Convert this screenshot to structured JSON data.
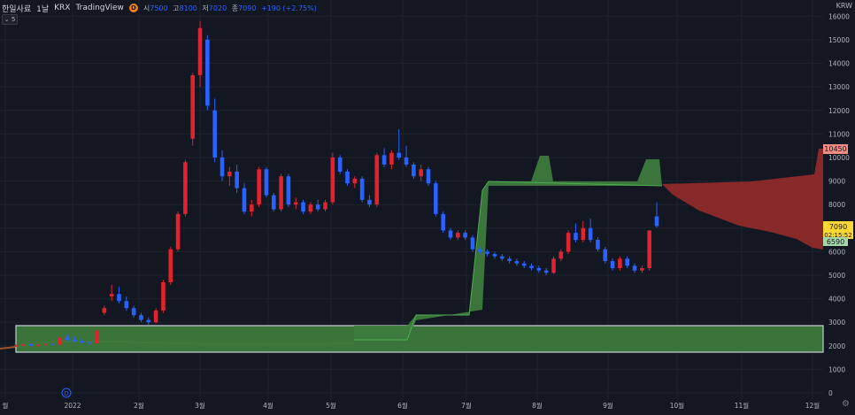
{
  "header": {
    "symbol": "한일사료",
    "interval": "1날",
    "exchange": "KRX",
    "source": "TradingView",
    "badge": "D",
    "open_label": "시",
    "open": "7500",
    "high_label": "고",
    "high": "8100",
    "low_label": "저",
    "low": "7020",
    "close_label": "종",
    "close": "7090",
    "change": "+190 (+2.75%)",
    "collapse_label": "5"
  },
  "currency": "KRW",
  "price_tags": {
    "cloud_top": "10450",
    "price": "7090",
    "countdown": "02:15:52",
    "cloud_bottom": "6590"
  },
  "event_marker": "D",
  "colors": {
    "background": "#131722",
    "up": "#e0232e",
    "down": "#2962ff",
    "cloud_bull": "#3d7a3d",
    "cloud_bear": "#8e2a2a",
    "grid": "#1e222d"
  },
  "chart_data": {
    "type": "candlestick",
    "ylim": [
      0,
      16000
    ],
    "y_ticks": [
      0,
      1000,
      2000,
      3000,
      4000,
      5000,
      6000,
      7000,
      8000,
      9000,
      10000,
      11000,
      12000,
      13000,
      14000,
      15000,
      16000
    ],
    "x_labels": [
      "월",
      "2022",
      "2월",
      "3월",
      "4월",
      "5월",
      "6월",
      "7월",
      "8월",
      "9월",
      "10월",
      "11월",
      "12월"
    ],
    "candles": [
      [
        1,
        2000,
        2050,
        1950,
        2020
      ],
      [
        2,
        2020,
        2080,
        1980,
        2050
      ],
      [
        3,
        2050,
        2100,
        2000,
        2000
      ],
      [
        4,
        2000,
        2060,
        1950,
        2040
      ],
      [
        5,
        2040,
        2100,
        2000,
        2080
      ],
      [
        6,
        2080,
        2150,
        2030,
        2050
      ],
      [
        7,
        2050,
        2400,
        2000,
        2350
      ],
      [
        8,
        2350,
        2500,
        2200,
        2250
      ],
      [
        9,
        2250,
        2400,
        2150,
        2200
      ],
      [
        10,
        2200,
        2300,
        2100,
        2150
      ],
      [
        11,
        2150,
        2200,
        2050,
        2100
      ],
      [
        12,
        2100,
        2700,
        2080,
        2650
      ],
      [
        13,
        3400,
        3700,
        3300,
        3600
      ],
      [
        14,
        4100,
        4600,
        3900,
        4200
      ],
      [
        15,
        4200,
        4500,
        3800,
        3900
      ],
      [
        16,
        3900,
        4100,
        3500,
        3600
      ],
      [
        17,
        3600,
        3700,
        3200,
        3300
      ],
      [
        18,
        3300,
        3400,
        3000,
        3100
      ],
      [
        19,
        3100,
        3200,
        2900,
        3000
      ],
      [
        20,
        3000,
        3600,
        2950,
        3500
      ],
      [
        21,
        3500,
        4800,
        3400,
        4700
      ],
      [
        22,
        4700,
        6200,
        4600,
        6100
      ],
      [
        23,
        6100,
        7700,
        6000,
        7600
      ],
      [
        24,
        7600,
        9900,
        7500,
        9800
      ],
      [
        25,
        10800,
        13600,
        10500,
        13500
      ],
      [
        26,
        13500,
        15800,
        13000,
        15500
      ],
      [
        27,
        15000,
        15200,
        12000,
        12200
      ],
      [
        28,
        12000,
        12500,
        9800,
        10000
      ],
      [
        29,
        10000,
        10300,
        9000,
        9200
      ],
      [
        30,
        9200,
        9600,
        8800,
        9400
      ],
      [
        31,
        9400,
        9700,
        8500,
        8700
      ],
      [
        32,
        8700,
        8900,
        7600,
        7700
      ],
      [
        33,
        7700,
        8200,
        7500,
        8000
      ],
      [
        34,
        8000,
        9600,
        7900,
        9500
      ],
      [
        35,
        9500,
        9600,
        8300,
        8400
      ],
      [
        36,
        8400,
        8500,
        7700,
        7800
      ],
      [
        37,
        7800,
        9300,
        7700,
        9200
      ],
      [
        38,
        9200,
        9300,
        7900,
        8000
      ],
      [
        39,
        8000,
        8300,
        7800,
        8100
      ],
      [
        40,
        8100,
        8200,
        7600,
        7700
      ],
      [
        41,
        7700,
        8100,
        7600,
        8000
      ],
      [
        42,
        8000,
        8200,
        7700,
        7800
      ],
      [
        43,
        7800,
        8200,
        7700,
        8100
      ],
      [
        44,
        8100,
        10200,
        8000,
        10000
      ],
      [
        45,
        10000,
        10100,
        9300,
        9400
      ],
      [
        46,
        9400,
        9500,
        8800,
        8900
      ],
      [
        47,
        8900,
        9200,
        8700,
        9100
      ],
      [
        48,
        9100,
        9200,
        8100,
        8200
      ],
      [
        49,
        8200,
        8400,
        7900,
        8000
      ],
      [
        50,
        8000,
        10200,
        7900,
        10100
      ],
      [
        51,
        10100,
        10400,
        9600,
        9700
      ],
      [
        52,
        9700,
        10300,
        9500,
        10200
      ],
      [
        53,
        10200,
        11200,
        9900,
        10000
      ],
      [
        54,
        10000,
        10500,
        9600,
        9700
      ],
      [
        55,
        9700,
        9800,
        9100,
        9200
      ],
      [
        56,
        9200,
        9700,
        9000,
        9500
      ],
      [
        57,
        9500,
        9600,
        8800,
        8900
      ],
      [
        58,
        8900,
        9000,
        7500,
        7600
      ],
      [
        59,
        7600,
        7700,
        6800,
        6900
      ],
      [
        60,
        6900,
        7000,
        6500,
        6600
      ],
      [
        61,
        6600,
        6900,
        6500,
        6800
      ],
      [
        62,
        6800,
        6900,
        6500,
        6600
      ],
      [
        63,
        6600,
        6700,
        6000,
        6100
      ],
      [
        64,
        6100,
        6200,
        5900,
        6000
      ],
      [
        65,
        6000,
        6100,
        5800,
        5900
      ],
      [
        66,
        5900,
        6000,
        5700,
        5800
      ],
      [
        67,
        5800,
        5900,
        5600,
        5700
      ],
      [
        68,
        5700,
        5800,
        5500,
        5600
      ],
      [
        69,
        5600,
        5700,
        5400,
        5500
      ],
      [
        70,
        5500,
        5600,
        5300,
        5400
      ],
      [
        71,
        5400,
        5500,
        5200,
        5300
      ],
      [
        72,
        5300,
        5400,
        5100,
        5200
      ],
      [
        73,
        5200,
        5300,
        5000,
        5100
      ],
      [
        74,
        5100,
        5800,
        5050,
        5700
      ],
      [
        75,
        5700,
        6100,
        5600,
        6000
      ],
      [
        76,
        6000,
        6900,
        5900,
        6800
      ],
      [
        77,
        6800,
        7200,
        6400,
        6500
      ],
      [
        78,
        6500,
        7300,
        6400,
        7000
      ],
      [
        79,
        7000,
        7400,
        6400,
        6500
      ],
      [
        80,
        6500,
        6600,
        6000,
        6100
      ],
      [
        81,
        6100,
        6200,
        5500,
        5600
      ],
      [
        82,
        5600,
        5700,
        5200,
        5300
      ],
      [
        83,
        5300,
        5800,
        5200,
        5700
      ],
      [
        84,
        5700,
        5800,
        5300,
        5400
      ],
      [
        85,
        5400,
        5500,
        5100,
        5200
      ],
      [
        86,
        5200,
        5400,
        5100,
        5300
      ],
      [
        87,
        5300,
        6900,
        5200,
        6900
      ],
      [
        88,
        7500,
        8100,
        7020,
        7090
      ]
    ]
  }
}
